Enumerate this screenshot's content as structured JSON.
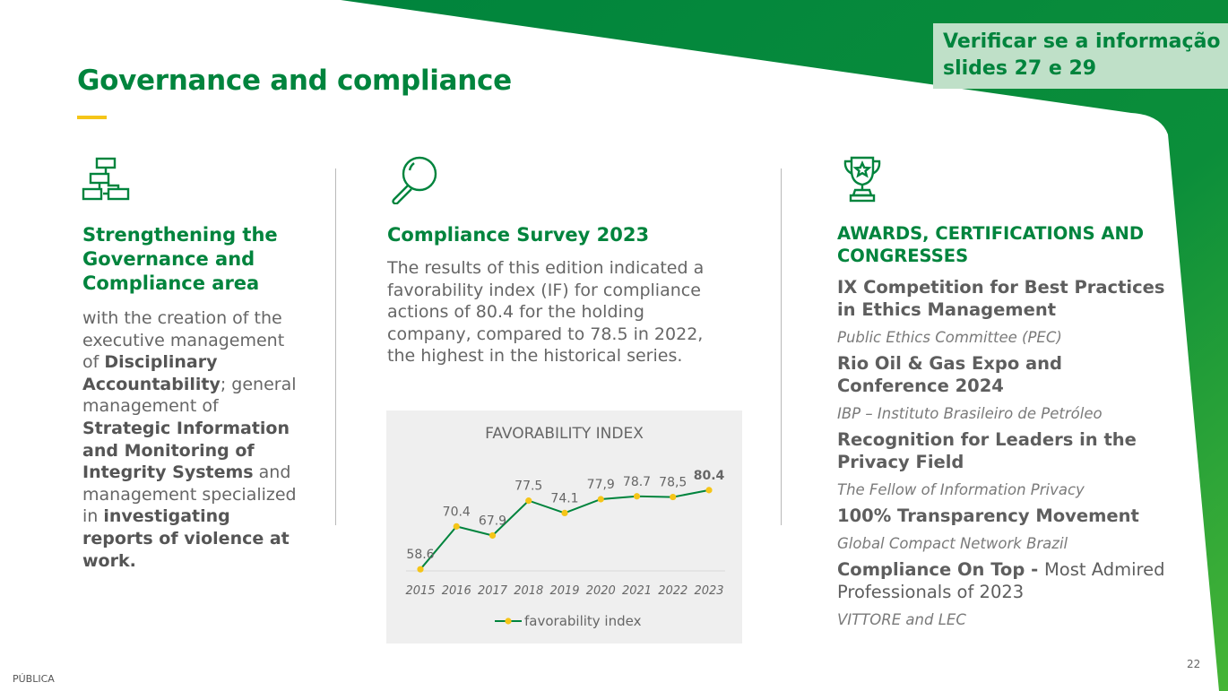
{
  "note": {
    "line1": "Verificar se a informação do",
    "line2": "slides 27 e 29"
  },
  "page_title": "Governance and compliance",
  "col1": {
    "heading": "Strengthening the Governance and Compliance area",
    "body": [
      {
        "t": "with the creation of the executive management of ",
        "b": false
      },
      {
        "t": "Disciplinary Accountability",
        "b": true
      },
      {
        "t": "; general management of ",
        "b": false
      },
      {
        "t": "Strategic Information and Monitoring of Integrity Systems",
        "b": true
      },
      {
        "t": " and management specialized in ",
        "b": false
      },
      {
        "t": "investigating reports of violence at work.",
        "b": true
      }
    ],
    "icon": "org-chart-icon"
  },
  "col2": {
    "heading": "Compliance Survey 2023",
    "body": "The results of this edition indicated a favorability index (IF) for compliance actions of 80.4 for the holding company, compared to 78.5 in 2022, the highest in the historical series.",
    "icon": "magnifier-icon"
  },
  "chart_data": {
    "type": "line",
    "title": "FAVORABILITY INDEX",
    "x": [
      "2015",
      "2016",
      "2017",
      "2018",
      "2019",
      "2020",
      "2021",
      "2022",
      "2023"
    ],
    "series": [
      {
        "name": "favorability index",
        "values": [
          58.6,
          70.4,
          67.9,
          77.5,
          74.1,
          77.9,
          78.7,
          78.5,
          80.4
        ],
        "labels": [
          "58.6",
          "70.4",
          "67.9",
          "77.5",
          "74.1",
          "77,9",
          "78.7",
          "78,5",
          "80.4"
        ]
      }
    ],
    "ylim": [
      50,
      90
    ],
    "grid": false,
    "legend": "bottom",
    "line_color": "#00843d",
    "marker_color": "#f5c518"
  },
  "col3": {
    "icon": "trophy-icon",
    "heading": "AWARDS, CERTIFICATIONS AND CONGRESSES",
    "items": [
      {
        "name": "IX Competition for Best Practices in Ethics Management",
        "name_suffix": "",
        "org": "Public Ethics Committee (PEC)"
      },
      {
        "name": "Rio Oil & Gas Expo and Conference 2024",
        "name_suffix": "",
        "org": "IBP – Instituto Brasileiro de Petróleo"
      },
      {
        "name": "Recognition for Leaders in the Privacy Field",
        "name_suffix": "",
        "org": "The Fellow of Information Privacy"
      },
      {
        "name": "100% Transparency Movement",
        "name_suffix": "",
        "org": "Global Compact Network Brazil"
      },
      {
        "name": "Compliance On Top - ",
        "name_suffix": "Most Admired Professionals of 2023",
        "org": "VITTORE and LEC"
      }
    ]
  },
  "footer": {
    "classification": "PÚBLICA",
    "page_number": "22"
  },
  "colors": {
    "brand_green": "#00843d",
    "accent_yellow": "#f5c518",
    "note_bg": "#bfe0c8"
  }
}
